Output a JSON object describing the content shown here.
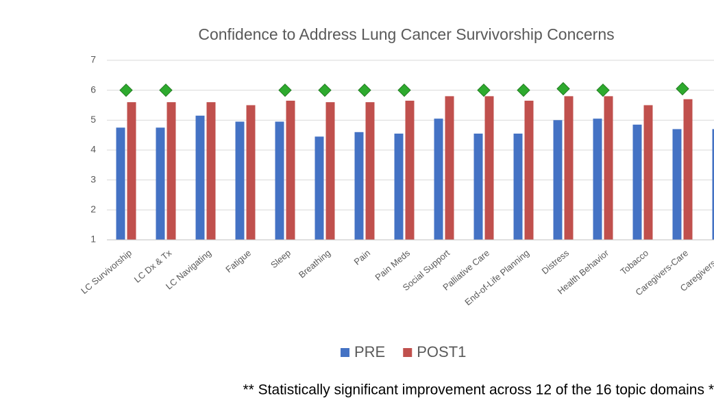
{
  "chart_data": {
    "type": "bar",
    "title": "Confidence to Address Lung Cancer Survivorship Concerns",
    "categories": [
      "LC Survivorship",
      "LC Dx & Tx",
      "LC Navigating",
      "Fatigue",
      "Sleep",
      "Breathing",
      "Pain",
      "Pain Meds",
      "Social Support",
      "Palliative Care",
      "End-of-Life Planning",
      "Distress",
      "Health Behavior",
      "Tobacco",
      "Caregivers-Care",
      "Caregivers-Sel"
    ],
    "series": [
      {
        "name": "PRE",
        "color": "#4472c4",
        "values": [
          4.75,
          4.75,
          5.15,
          4.95,
          4.95,
          4.45,
          4.6,
          4.55,
          5.05,
          4.55,
          4.55,
          5.0,
          5.05,
          4.85,
          4.7,
          4.7
        ]
      },
      {
        "name": "POST1",
        "color": "#c0504d",
        "values": [
          5.6,
          5.6,
          5.6,
          5.5,
          5.65,
          5.6,
          5.6,
          5.65,
          5.8,
          5.8,
          5.65,
          5.8,
          5.8,
          5.5,
          5.7,
          null
        ]
      }
    ],
    "markers": {
      "color": "#2eaa2e",
      "values": [
        6.0,
        6.0,
        null,
        null,
        6.0,
        6.0,
        6.0,
        6.0,
        null,
        6.0,
        6.0,
        6.05,
        6.0,
        null,
        6.05,
        null
      ]
    },
    "ylim": [
      1,
      7
    ],
    "yticks": [
      1,
      2,
      3,
      4,
      5,
      6,
      7
    ],
    "grid": true,
    "footnote": "** Statistically significant improvement across 12 of the 16 topic domains *"
  }
}
